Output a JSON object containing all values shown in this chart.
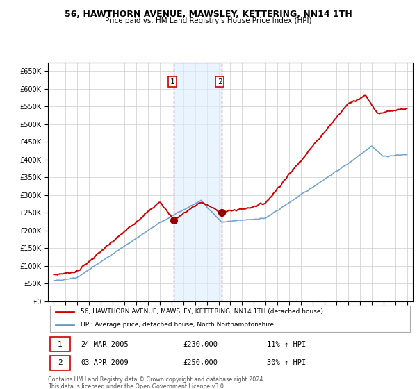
{
  "title": "56, HAWTHORN AVENUE, MAWSLEY, KETTERING, NN14 1TH",
  "subtitle": "Price paid vs. HM Land Registry's House Price Index (HPI)",
  "legend_line1": "56, HAWTHORN AVENUE, MAWSLEY, KETTERING, NN14 1TH (detached house)",
  "legend_line2": "HPI: Average price, detached house, North Northamptonshire",
  "annotation1_date": "24-MAR-2005",
  "annotation1_price": "£230,000",
  "annotation1_hpi": "11% ↑ HPI",
  "annotation2_date": "03-APR-2009",
  "annotation2_price": "£250,000",
  "annotation2_hpi": "30% ↑ HPI",
  "footer": "Contains HM Land Registry data © Crown copyright and database right 2024.\nThis data is licensed under the Open Government Licence v3.0.",
  "sale1_x": 2005.2,
  "sale1_y": 230000,
  "sale2_x": 2009.25,
  "sale2_y": 250000,
  "red_line_color": "#cc0000",
  "blue_line_color": "#6699cc",
  "shade_color": "#ddeeff",
  "grid_color": "#cccccc",
  "ylim": [
    0,
    675000
  ],
  "xlim": [
    1994.5,
    2025.5
  ],
  "yticks": [
    0,
    50000,
    100000,
    150000,
    200000,
    250000,
    300000,
    350000,
    400000,
    450000,
    500000,
    550000,
    600000,
    650000
  ],
  "xticks": [
    1995,
    1996,
    1997,
    1998,
    1999,
    2000,
    2001,
    2002,
    2003,
    2004,
    2005,
    2006,
    2007,
    2008,
    2009,
    2010,
    2011,
    2012,
    2013,
    2014,
    2015,
    2016,
    2017,
    2018,
    2019,
    2020,
    2021,
    2022,
    2023,
    2024,
    2025
  ]
}
